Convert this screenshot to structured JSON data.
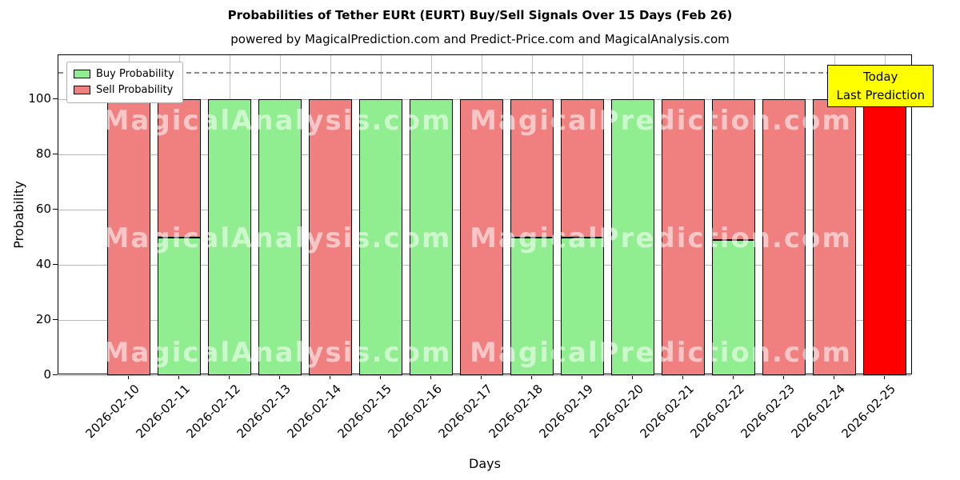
{
  "chart_data": {
    "type": "bar",
    "stacked": true,
    "title": "Probabilities of Tether EURt (EURT) Buy/Sell Signals Over 15 Days (Feb 26)",
    "subtitle": "powered by MagicalPrediction.com and Predict-Price.com and MagicalAnalysis.com",
    "xlabel": "Days",
    "ylabel": "Probability",
    "ylim": [
      0,
      116
    ],
    "yticks": [
      0,
      20,
      40,
      60,
      80,
      100
    ],
    "dashed_line_y": 110,
    "grid": true,
    "legend_position": "upper left",
    "categories": [
      "2026-02-10",
      "2026-02-11",
      "2026-02-12",
      "2026-02-13",
      "2026-02-14",
      "2026-02-15",
      "2026-02-16",
      "2026-02-17",
      "2026-02-18",
      "2026-02-19",
      "2026-02-20",
      "2026-02-21",
      "2026-02-22",
      "2026-02-23",
      "2026-02-24",
      "2026-02-25"
    ],
    "series": [
      {
        "name": "Buy Probability",
        "color": "#90EE90",
        "values": [
          0,
          50,
          100,
          100,
          0,
          100,
          100,
          0,
          50,
          50,
          100,
          0,
          49,
          0,
          0,
          0
        ]
      },
      {
        "name": "Sell Probability",
        "color": "#F08080",
        "values": [
          100,
          50,
          0,
          0,
          100,
          0,
          0,
          100,
          50,
          50,
          0,
          100,
          51,
          100,
          100,
          100
        ]
      }
    ],
    "last_bar_color": "#FF0000",
    "annotation": {
      "line1": "Today",
      "line2": "Last Prediction",
      "bg": "#FFFF00"
    }
  },
  "watermarks": {
    "left": "MagicalAnalysis.com",
    "right": "MagicalPrediction.com"
  }
}
